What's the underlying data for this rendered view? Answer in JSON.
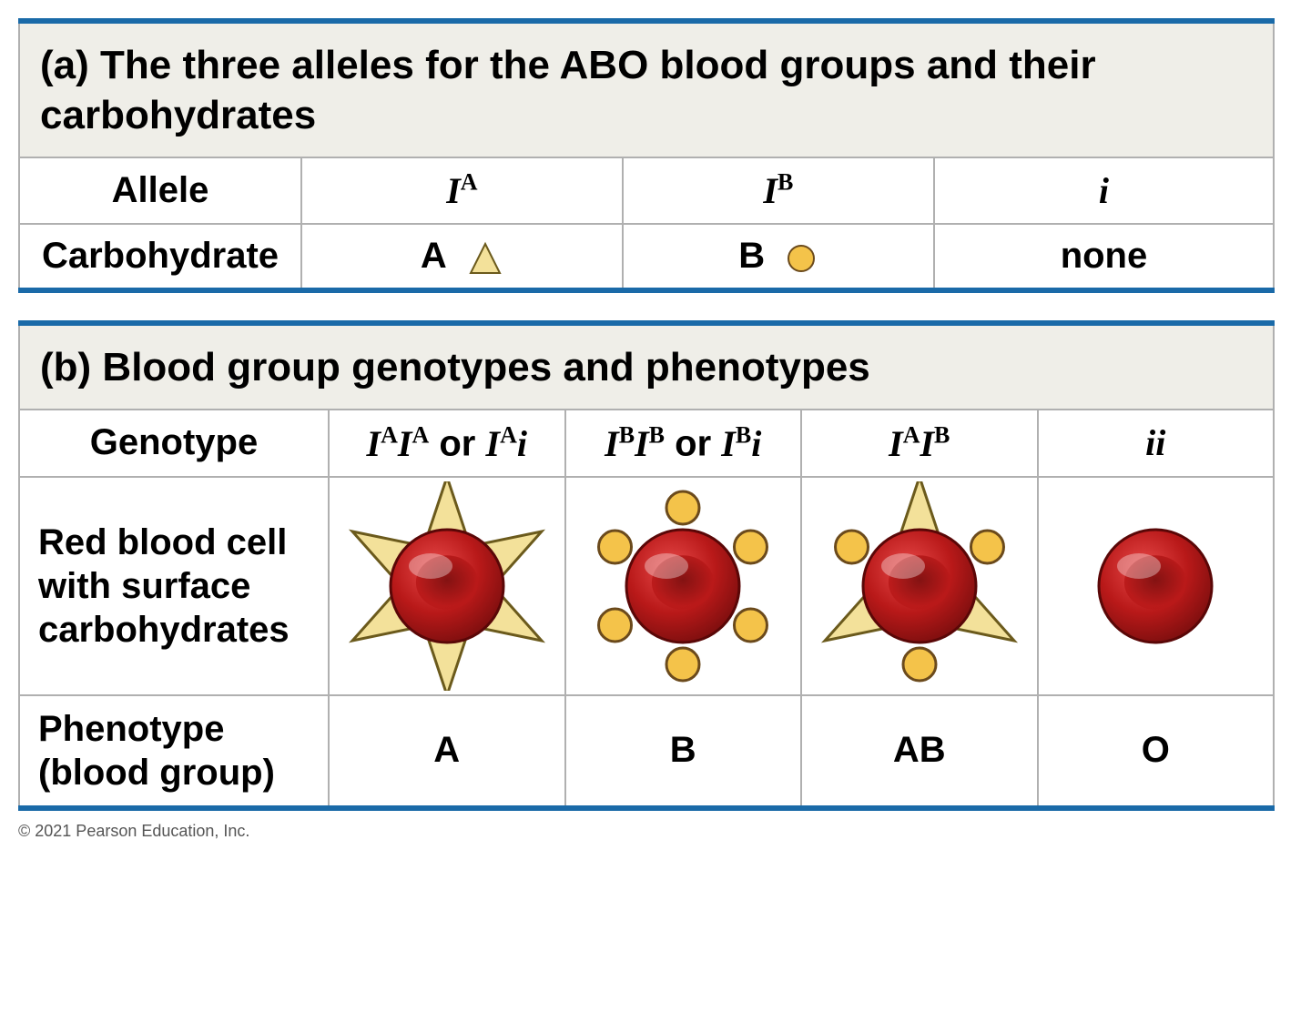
{
  "colors": {
    "accent_border": "#1a6aa8",
    "grid_border": "#b0b0b0",
    "header_bg": "#efeee8",
    "triangle_fill": "#f3e19a",
    "triangle_stroke": "#6b5a1c",
    "circle_fill": "#f4c34a",
    "circle_stroke": "#6b4a1c",
    "rbc_fill": "#b91919",
    "rbc_highlight": "#e84a4a",
    "rbc_dark": "#7a0e0e",
    "rbc_stroke": "#5a0707"
  },
  "table_a": {
    "title_prefix": "(a)",
    "title": "The three alleles for the ABO blood groups and their carbohydrates",
    "row_labels": {
      "allele": "Allele",
      "carb": "Carbohydrate"
    },
    "cols": [
      {
        "allele_base": "I",
        "allele_sup": "A",
        "carb_label": "A",
        "carb_shape": "triangle"
      },
      {
        "allele_base": "I",
        "allele_sup": "B",
        "carb_label": "B",
        "carb_shape": "circle"
      },
      {
        "allele_base": "i",
        "allele_sup": "",
        "carb_label": "none",
        "carb_shape": "none"
      }
    ]
  },
  "table_b": {
    "title_prefix": "(b)",
    "title": "Blood group genotypes and phenotypes",
    "row_labels": {
      "genotype": "Genotype",
      "rbc": "Red blood cell with surface carbohydrates",
      "phenotype": "Phenotype (blood group)"
    },
    "cols": [
      {
        "geno_html": "IA|IA|or|IA|i",
        "markers": "triangles",
        "phenotype": "A"
      },
      {
        "geno_html": "IB|IB|or|IB|i",
        "markers": "circles",
        "phenotype": "B"
      },
      {
        "geno_html": "IA|IB",
        "markers": "mixed",
        "phenotype": "AB"
      },
      {
        "geno_html": "i|i",
        "markers": "none",
        "phenotype": "O"
      }
    ],
    "or_word": "or"
  },
  "copyright": "© 2021 Pearson Education, Inc."
}
